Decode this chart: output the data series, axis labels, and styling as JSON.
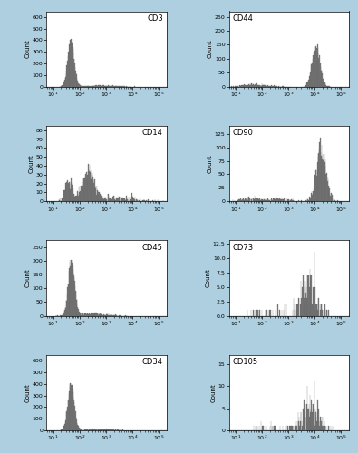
{
  "background_color": "#aecfdf",
  "hist_facecolor": "#808080",
  "hist_edgecolor": "#606060",
  "hist_linewidth": 0.2,
  "panels": [
    {
      "label": "CD3",
      "ylim": [
        0,
        650
      ],
      "yticks": [
        0,
        100,
        200,
        300,
        400,
        500,
        600
      ],
      "xlim_low": 0.75,
      "xlim_high": 5.3,
      "label_loc": "upper right",
      "components": [
        {
          "mu": 1.68,
          "sigma": 0.12,
          "n": 8000
        },
        {
          "mu": 2.8,
          "sigma": 0.5,
          "n": 800
        }
      ]
    },
    {
      "label": "CD44",
      "ylim": [
        0,
        270
      ],
      "yticks": [
        0,
        50,
        100,
        150,
        200,
        250
      ],
      "xlim_low": 0.75,
      "xlim_high": 5.3,
      "label_loc": "upper left",
      "components": [
        {
          "mu": 1.5,
          "sigma": 0.3,
          "n": 300
        },
        {
          "mu": 2.0,
          "sigma": 0.35,
          "n": 200
        },
        {
          "mu": 4.05,
          "sigma": 0.15,
          "n": 3500
        }
      ]
    },
    {
      "label": "CD14",
      "ylim": [
        0,
        85
      ],
      "yticks": [
        0,
        10,
        20,
        30,
        40,
        50,
        60,
        70,
        80
      ],
      "xlim_low": 0.75,
      "xlim_high": 5.3,
      "label_loc": "upper right",
      "components": [
        {
          "mu": 1.6,
          "sigma": 0.15,
          "n": 500
        },
        {
          "mu": 2.35,
          "sigma": 0.22,
          "n": 1200
        },
        {
          "mu": 3.5,
          "sigma": 0.6,
          "n": 300
        }
      ]
    },
    {
      "label": "CD90",
      "ylim": [
        0,
        140
      ],
      "yticks": [
        0,
        25,
        50,
        75,
        100,
        125
      ],
      "xlim_low": 0.75,
      "xlim_high": 5.3,
      "label_loc": "upper left",
      "components": [
        {
          "mu": 1.5,
          "sigma": 0.3,
          "n": 200
        },
        {
          "mu": 2.5,
          "sigma": 0.5,
          "n": 300
        },
        {
          "mu": 4.25,
          "sigma": 0.18,
          "n": 2800
        }
      ]
    },
    {
      "label": "CD45",
      "ylim": [
        0,
        275
      ],
      "yticks": [
        0,
        50,
        100,
        150,
        200,
        250
      ],
      "xlim_low": 0.75,
      "xlim_high": 5.3,
      "label_loc": "upper right",
      "components": [
        {
          "mu": 1.7,
          "sigma": 0.12,
          "n": 4000
        },
        {
          "mu": 2.5,
          "sigma": 0.45,
          "n": 600
        }
      ]
    },
    {
      "label": "CD73",
      "ylim": [
        0,
        13
      ],
      "yticks": [
        0.0,
        2.5,
        5.0,
        7.5,
        10.0,
        12.5
      ],
      "xlim_low": 0.75,
      "xlim_high": 5.3,
      "label_loc": "upper left",
      "components": [
        {
          "mu": 2.5,
          "sigma": 0.5,
          "n": 30
        },
        {
          "mu": 3.8,
          "sigma": 0.28,
          "n": 230
        }
      ]
    },
    {
      "label": "CD34",
      "ylim": [
        0,
        650
      ],
      "yticks": [
        0,
        100,
        200,
        300,
        400,
        500,
        600
      ],
      "xlim_low": 0.75,
      "xlim_high": 5.3,
      "label_loc": "upper right",
      "components": [
        {
          "mu": 1.68,
          "sigma": 0.12,
          "n": 8000
        },
        {
          "mu": 2.8,
          "sigma": 0.5,
          "n": 700
        }
      ]
    },
    {
      "label": "CD105",
      "ylim": [
        0,
        17
      ],
      "yticks": [
        0,
        5,
        10,
        15
      ],
      "xlim_low": 0.75,
      "xlim_high": 5.3,
      "label_loc": "upper left",
      "components": [
        {
          "mu": 2.5,
          "sigma": 0.5,
          "n": 30
        },
        {
          "mu": 3.85,
          "sigma": 0.3,
          "n": 250
        }
      ]
    }
  ]
}
